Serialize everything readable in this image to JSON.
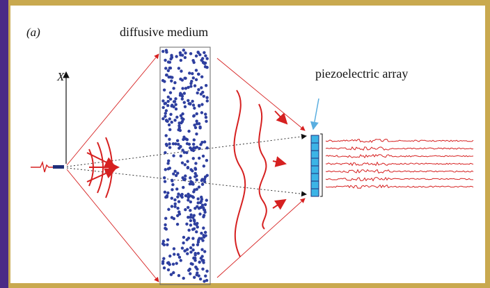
{
  "panel_label": "(a)",
  "medium_label": "diffusive medium",
  "axis_label": "X",
  "array_label": "piezoelectric array"
}
